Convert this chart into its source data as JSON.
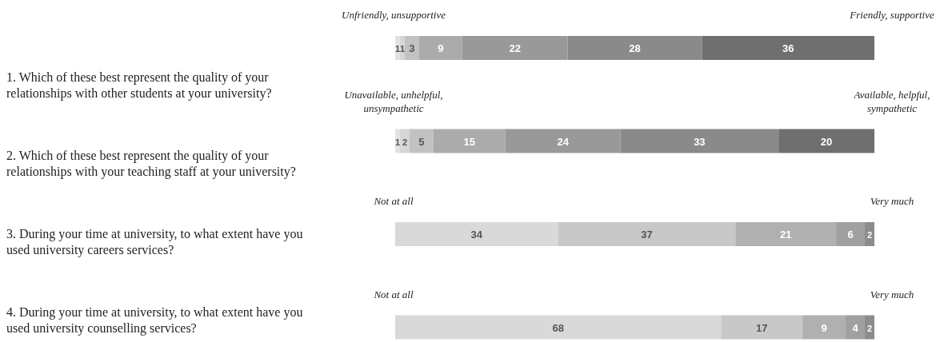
{
  "chart_data": {
    "type": "bar",
    "orientation": "horizontal",
    "stacked": true,
    "data_labels": true,
    "categories": [
      "1. Which of these best represent the quality of your relationships with other students at your university?",
      "2. Which of these best represent the quality of your relationships with your teaching staff at your university?",
      "3. During your time at university, to what extent have you used university careers services?",
      "4. During your time at university, to what extent have you used university counselling services?"
    ],
    "annotations": [
      "Unfriendly, unsupportive",
      "Friendly, supportive",
      "Unavailable, unhelpful,\nunsympathetic",
      "Available, helpful,\nsympathetic",
      "Not at all",
      "Very much",
      "Not at all",
      "Very much"
    ],
    "series": [
      {
        "values": [
          1,
          1,
          34,
          68
        ],
        "colors": [
          "#e2e2e2",
          "#e2e2e2",
          "#d9d9d9",
          "#d9d9d9"
        ]
      },
      {
        "values": [
          1,
          2,
          37,
          17
        ],
        "colors": [
          "#d6d6d6",
          "#d6d6d6",
          "#c8c8c8",
          "#c8c8c8"
        ]
      },
      {
        "values": [
          3,
          5,
          21,
          9
        ],
        "colors": [
          "#c2c2c2",
          "#c2c2c2",
          "#b0b0b0",
          "#b0b0b0"
        ]
      },
      {
        "values": [
          9,
          15,
          6,
          4
        ],
        "colors": [
          "#ababab",
          "#ababab",
          "#a0a0a0",
          "#a0a0a0"
        ]
      },
      {
        "values": [
          22,
          24,
          2,
          2
        ],
        "colors": [
          "#999999",
          "#999999",
          "#8c8c8c",
          "#8c8c8c"
        ]
      },
      {
        "values": [
          28,
          33,
          null,
          null
        ],
        "colors": [
          "#8a8a8a",
          "#8a8a8a",
          null,
          null
        ]
      },
      {
        "values": [
          36,
          20,
          null,
          null
        ],
        "colors": [
          "#6f6f6f",
          "#6f6f6f",
          null,
          null
        ]
      }
    ]
  }
}
